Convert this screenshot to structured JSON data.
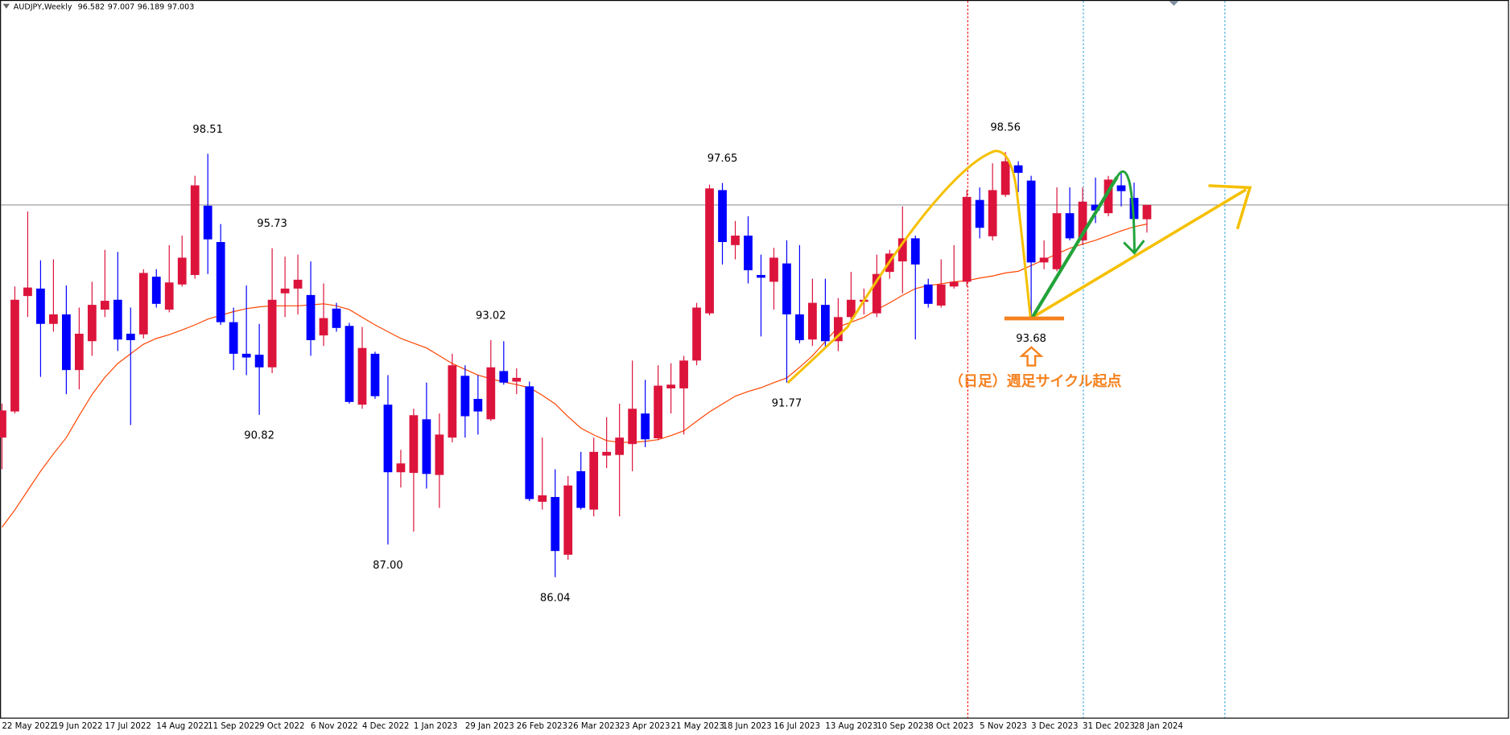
{
  "chart_data": {
    "type": "candlestick",
    "title": "AUDJPY,Weekly",
    "annotation": "（日足）週足サイクル起点",
    "up_color": "#dc143c",
    "down_color": "#0000ff",
    "ylim": [
      81.9,
      103.04
    ],
    "categories": [
      "22 May 2022",
      null,
      null,
      null,
      "19 Jun 2022",
      null,
      null,
      null,
      "17 Jul 2022",
      null,
      null,
      null,
      "14 Aug 2022",
      null,
      null,
      null,
      "11 Sep 2022",
      null,
      null,
      null,
      "9 Oct 2022",
      null,
      null,
      null,
      "6 Nov 2022",
      null,
      null,
      null,
      "4 Dec 2022",
      null,
      null,
      null,
      "1 Jan 2023",
      null,
      null,
      null,
      "29 Jan 2023",
      null,
      null,
      null,
      "26 Feb 2023",
      null,
      null,
      null,
      "26 Mar 2023",
      null,
      null,
      null,
      "23 Apr 2023",
      null,
      null,
      null,
      "21 May 2023",
      null,
      null,
      null,
      "18 Jun 2023",
      null,
      null,
      null,
      "16 Jul 2023",
      null,
      null,
      null,
      "13 Aug 2023",
      null,
      null,
      null,
      "10 Sep 2023",
      null,
      null,
      null,
      "8 Oct 2023",
      null,
      null,
      null,
      "5 Nov 2023",
      null,
      null,
      null,
      "3 Dec 2023",
      null,
      null,
      null,
      "31 Dec 2023",
      null,
      null,
      null,
      "28 Jan 2024",
      null
    ],
    "open": [
      90.15,
      90.92,
      94.32,
      94.54,
      93.5,
      93.78,
      92.14,
      92.99,
      93.92,
      94.21,
      93.21,
      93.19,
      94.89,
      93.92,
      94.66,
      94.94,
      96.98,
      95.91,
      93.55,
      92.62,
      92.59,
      92.22,
      94.4,
      94.54,
      94.35,
      93.16,
      93.95,
      93.44,
      91.12,
      92.62,
      91.12,
      89.13,
      89.11,
      90.69,
      89.05,
      90.15,
      91.97,
      91.29,
      90.69,
      92.11,
      91.8,
      91.66,
      88.26,
      88.4,
      86.7,
      89.16,
      88.03,
      89.62,
      89.64,
      89.96,
      90.86,
      90.13,
      91.6,
      91.6,
      92.42,
      93.81,
      97.44,
      95.82,
      96.1,
      94.94,
      94.74,
      95.28,
      93.78,
      93.04,
      94.06,
      92.99,
      93.7,
      94.15,
      93.81,
      95.03,
      95.34,
      96.02,
      94.66,
      94.04,
      94.6,
      94.74,
      97.15,
      96.08,
      97.3,
      98.17,
      97.72,
      95.31,
      95.11,
      96.76,
      95.96,
      97.01,
      96.76,
      97.58,
      97.21,
      96.582
    ],
    "high": [
      91.15,
      94.6,
      96.81,
      95.37,
      95.4,
      94.63,
      93.98,
      94.74,
      95.68,
      95.62,
      93.98,
      95.11,
      95.11,
      95.82,
      96.1,
      97.86,
      98.51,
      96.44,
      93.98,
      94.63,
      93.5,
      95.73,
      95.48,
      95.54,
      95.34,
      94.69,
      94.12,
      93.53,
      93.41,
      92.68,
      91.99,
      89.79,
      91.0,
      91.77,
      90.86,
      92.62,
      92.28,
      91.99,
      93.02,
      92.99,
      92.19,
      91.8,
      90.15,
      89.22,
      89.02,
      89.73,
      90.15,
      90.75,
      91.15,
      92.42,
      91.85,
      92.28,
      92.34,
      92.56,
      94.12,
      97.6,
      97.65,
      96.53,
      96.67,
      95.54,
      95.74,
      95.96,
      95.82,
      94.83,
      94.83,
      94.26,
      95.03,
      94.54,
      95.54,
      95.68,
      96.96,
      96.1,
      94.83,
      95.4,
      95.82,
      97.44,
      97.52,
      98.23,
      98.56,
      98.29,
      97.86,
      95.96,
      97.52,
      97.52,
      97.52,
      97.81,
      97.86,
      97.95,
      97.66,
      97.007
    ],
    "low": [
      89.22,
      90.86,
      93.7,
      91.94,
      93.27,
      91.43,
      91.57,
      92.56,
      93.7,
      92.7,
      90.52,
      93.07,
      93.98,
      93.84,
      94.6,
      94.83,
      94.97,
      93.47,
      92.14,
      91.99,
      90.82,
      92.05,
      93.7,
      93.78,
      92.56,
      92.85,
      93.27,
      91.15,
      91.0,
      91.29,
      87.0,
      88.68,
      87.38,
      88.65,
      88.08,
      90.01,
      90.15,
      90.24,
      90.64,
      91.71,
      91.43,
      88.28,
      88.03,
      86.04,
      86.55,
      88.03,
      87.83,
      89.25,
      87.83,
      89.16,
      89.87,
      90.07,
      90.86,
      90.24,
      92.28,
      93.75,
      95.25,
      95.4,
      94.69,
      93.13,
      93.92,
      91.77,
      92.93,
      92.85,
      92.79,
      92.7,
      93.55,
      93.78,
      93.7,
      94.83,
      94.4,
      93.04,
      93.98,
      93.98,
      94.54,
      94.6,
      96.02,
      95.96,
      97.24,
      97.38,
      93.68,
      95.11,
      95.05,
      95.96,
      95.82,
      96.47,
      96.67,
      96.96,
      96.25,
      96.189
    ],
    "close": [
      90.95,
      94.21,
      94.57,
      93.5,
      93.78,
      92.14,
      93.21,
      94.06,
      94.18,
      93.04,
      93.02,
      95.0,
      94.09,
      94.72,
      95.45,
      97.58,
      95.99,
      93.55,
      92.62,
      92.51,
      92.22,
      94.21,
      94.54,
      94.8,
      93.02,
      93.67,
      93.38,
      91.2,
      92.79,
      91.37,
      89.13,
      89.39,
      90.81,
      89.08,
      90.24,
      92.28,
      90.78,
      90.92,
      92.22,
      91.77,
      91.91,
      88.34,
      88.45,
      86.81,
      88.74,
      88.08,
      89.73,
      89.73,
      90.15,
      91.0,
      90.1,
      91.68,
      91.71,
      92.42,
      93.98,
      97.49,
      95.91,
      96.1,
      95.08,
      94.86,
      95.45,
      93.78,
      93.02,
      94.12,
      92.99,
      93.7,
      94.21,
      94.21,
      94.97,
      95.57,
      96.02,
      95.25,
      94.09,
      94.66,
      94.74,
      97.24,
      96.33,
      97.44,
      98.29,
      97.95,
      95.31,
      95.45,
      96.76,
      96.02,
      97.1,
      96.84,
      97.75,
      97.41,
      96.59,
      97.003
    ],
    "high_labels": [
      null,
      null,
      null,
      null,
      null,
      null,
      null,
      null,
      null,
      null,
      null,
      null,
      null,
      null,
      null,
      null,
      "98.51",
      null,
      null,
      null,
      null,
      "95.73",
      null,
      null,
      null,
      null,
      null,
      null,
      null,
      null,
      null,
      null,
      null,
      null,
      null,
      null,
      null,
      null,
      "93.02",
      null,
      null,
      null,
      null,
      null,
      null,
      null,
      null,
      null,
      null,
      null,
      null,
      null,
      null,
      null,
      null,
      null,
      "97.65",
      null,
      null,
      null,
      null,
      null,
      null,
      null,
      null,
      null,
      null,
      null,
      null,
      null,
      null,
      null,
      null,
      null,
      null,
      null,
      null,
      null,
      "98.56",
      null,
      null,
      null,
      null,
      null,
      null,
      null,
      null,
      null,
      null,
      null
    ],
    "low_labels": [
      null,
      null,
      null,
      null,
      null,
      null,
      null,
      null,
      null,
      null,
      null,
      null,
      null,
      null,
      null,
      null,
      null,
      null,
      null,
      null,
      "90.82",
      null,
      null,
      null,
      null,
      null,
      null,
      null,
      null,
      null,
      "87.00",
      null,
      null,
      null,
      null,
      null,
      null,
      null,
      null,
      null,
      null,
      null,
      null,
      "86.04",
      null,
      null,
      null,
      null,
      null,
      null,
      null,
      null,
      null,
      null,
      null,
      null,
      null,
      null,
      null,
      null,
      null,
      "91.77",
      null,
      null,
      null,
      null,
      null,
      null,
      null,
      null,
      null,
      null,
      null,
      null,
      null,
      null,
      null,
      null,
      null,
      null,
      "93.68",
      null,
      null,
      null,
      null,
      null,
      null,
      null,
      null,
      null
    ],
    "moving_average": {
      "color": "#ff4500",
      "values": [
        87.51,
        88.02,
        88.59,
        89.16,
        89.67,
        90.15,
        90.8,
        91.42,
        91.93,
        92.33,
        92.62,
        92.9,
        93.07,
        93.18,
        93.32,
        93.47,
        93.64,
        93.75,
        93.86,
        93.95,
        94.0,
        94.03,
        94.03,
        94.03,
        94.06,
        94.09,
        94.03,
        93.92,
        93.69,
        93.47,
        93.27,
        93.07,
        92.93,
        92.79,
        92.56,
        92.33,
        92.16,
        91.99,
        91.88,
        91.79,
        91.71,
        91.62,
        91.4,
        91.14,
        90.77,
        90.43,
        90.23,
        90.06,
        90.01,
        90.01,
        90.04,
        90.09,
        90.21,
        90.35,
        90.63,
        90.91,
        91.14,
        91.37,
        91.51,
        91.62,
        91.77,
        91.91,
        92.22,
        92.56,
        92.98,
        93.41,
        93.55,
        93.69,
        93.92,
        94.12,
        94.34,
        94.54,
        94.63,
        94.68,
        94.74,
        94.77,
        94.85,
        94.91,
        95.0,
        95.05,
        95.22,
        95.39,
        95.56,
        95.73,
        95.85,
        95.96,
        96.1,
        96.24,
        96.36,
        96.44
      ]
    },
    "price_line_color": "#a0a0a0"
  }
}
